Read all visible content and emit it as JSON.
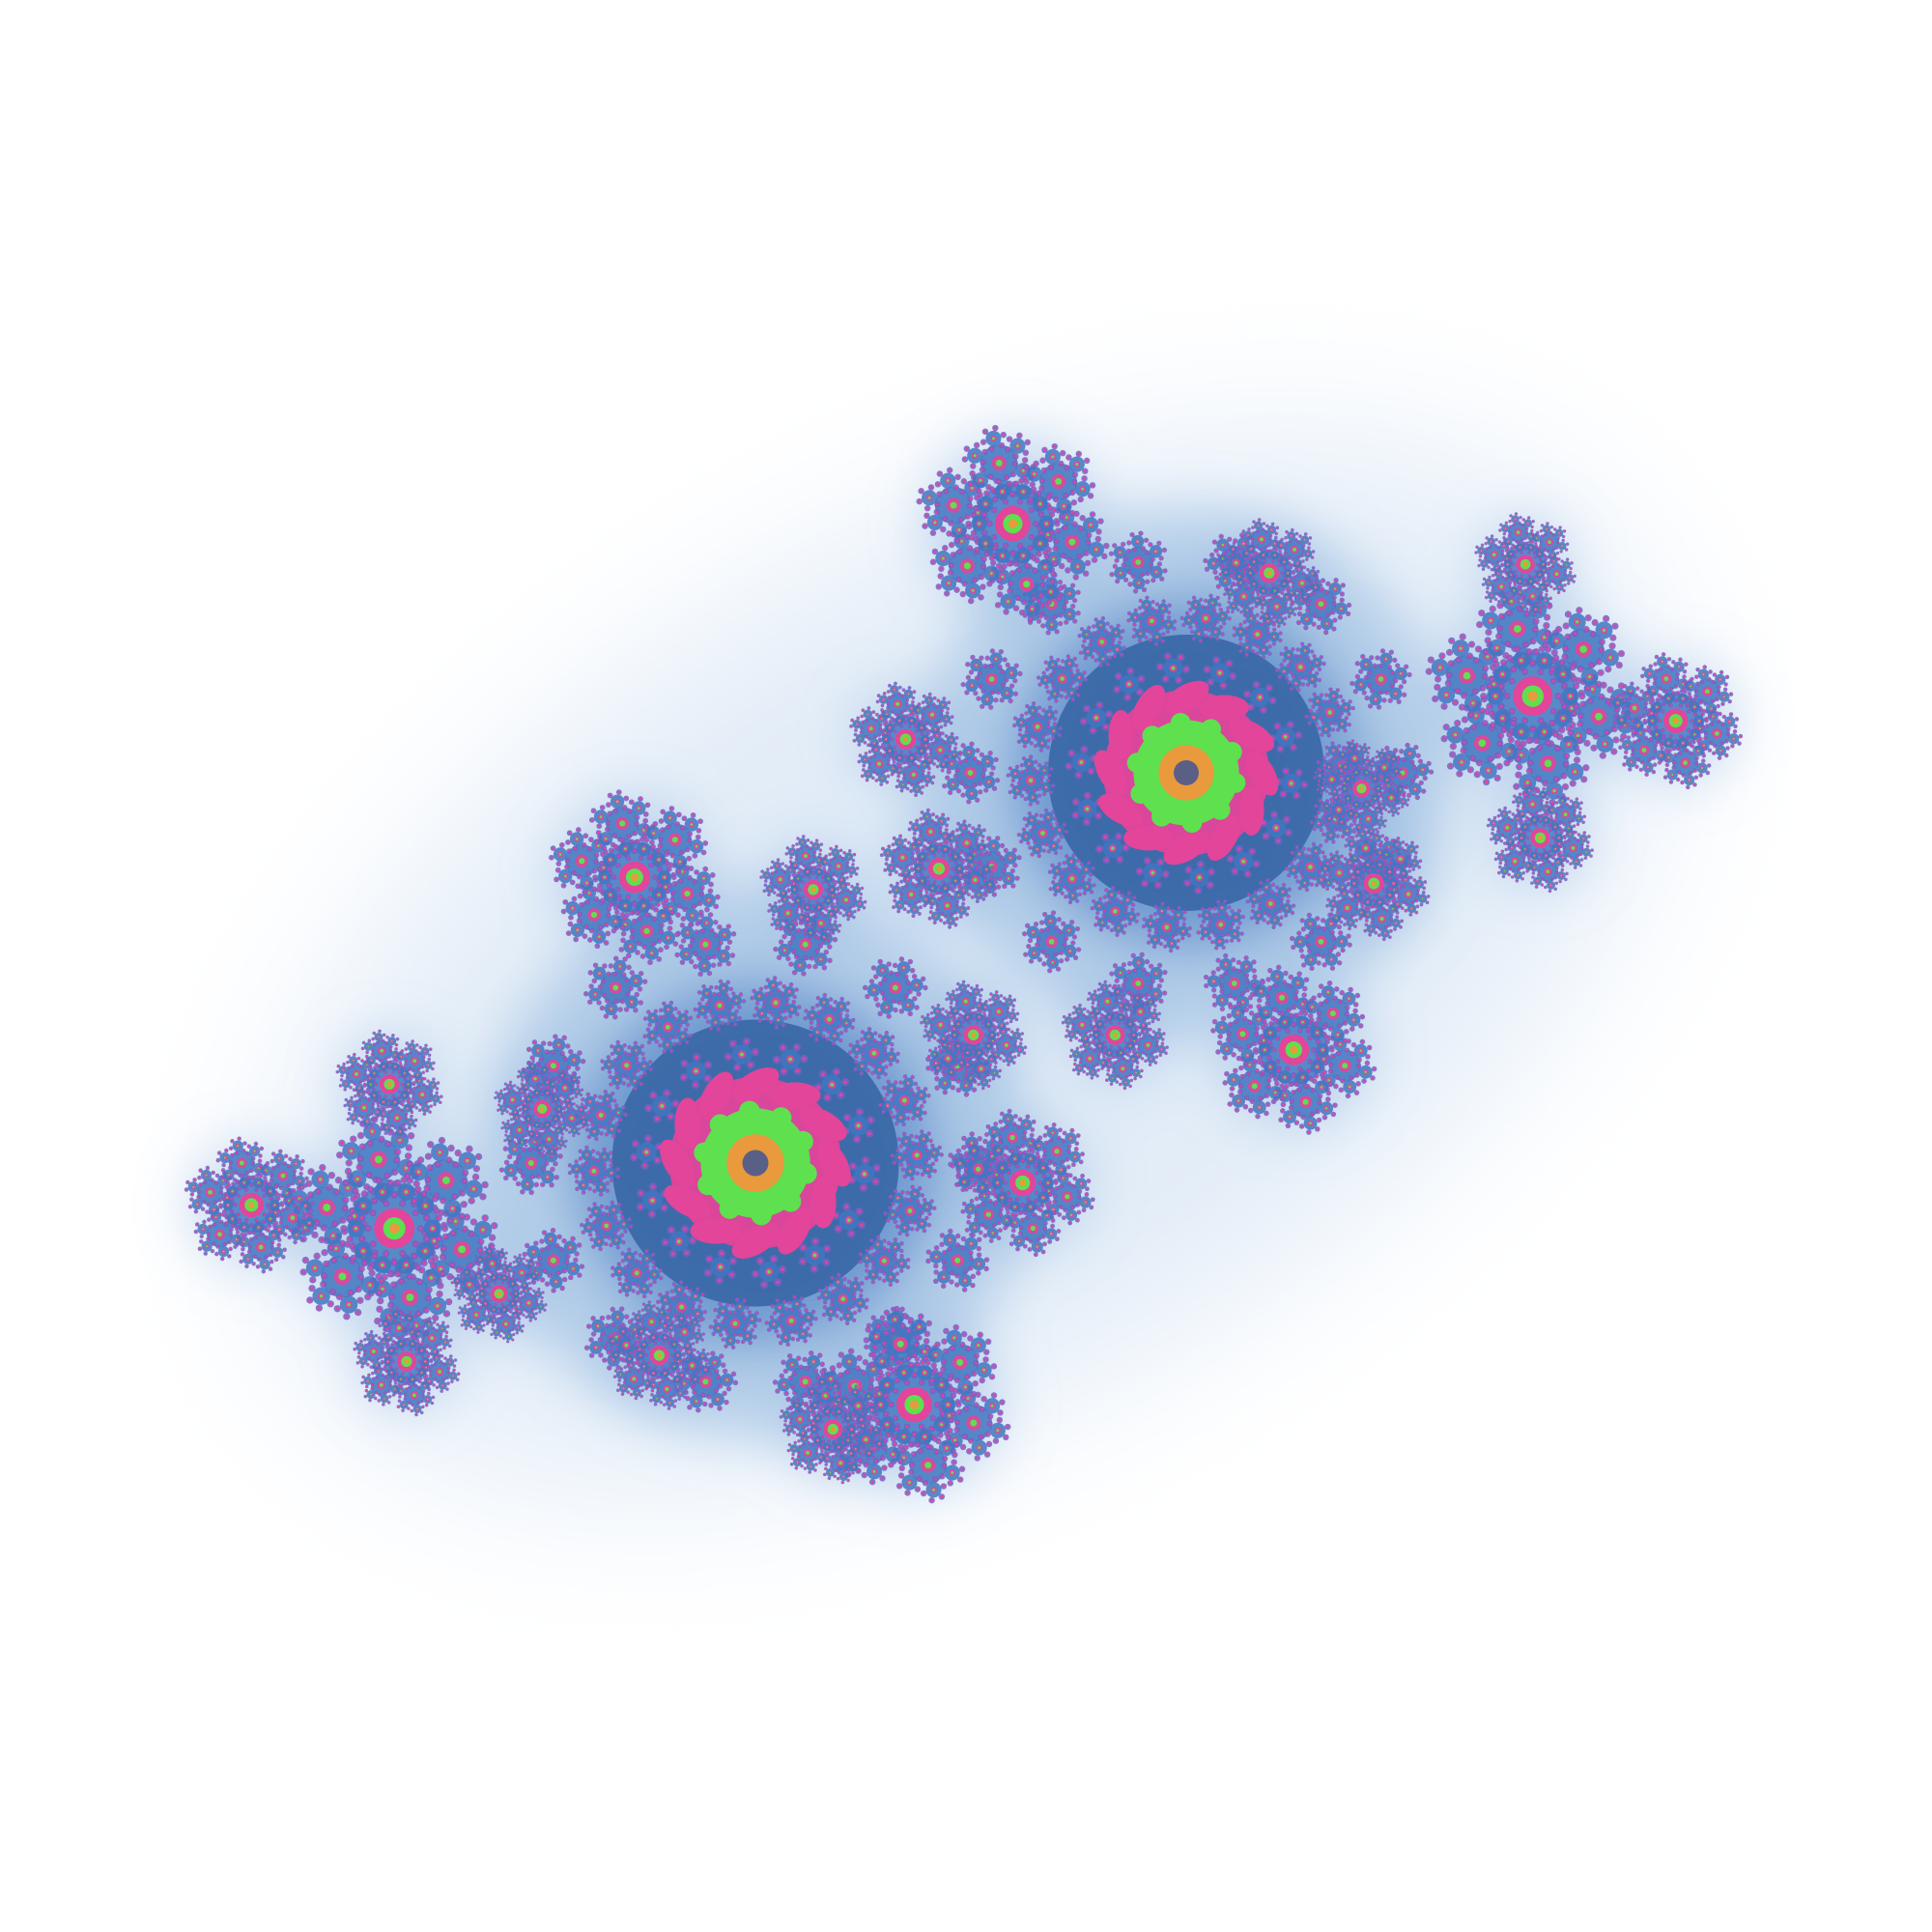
{
  "image": {
    "subject": "julia-set-fractal",
    "background_color": "#ffffff",
    "palette": {
      "halo_light": "#dbe8f5",
      "halo_mid": "#8db4dd",
      "body_blue": "#3f77bf",
      "body_dark": "#2d5c9e",
      "magenta": "#e2459a",
      "green": "#5fe04e",
      "orange": "#e89a3c",
      "violet": "#7a5fc4"
    }
  }
}
